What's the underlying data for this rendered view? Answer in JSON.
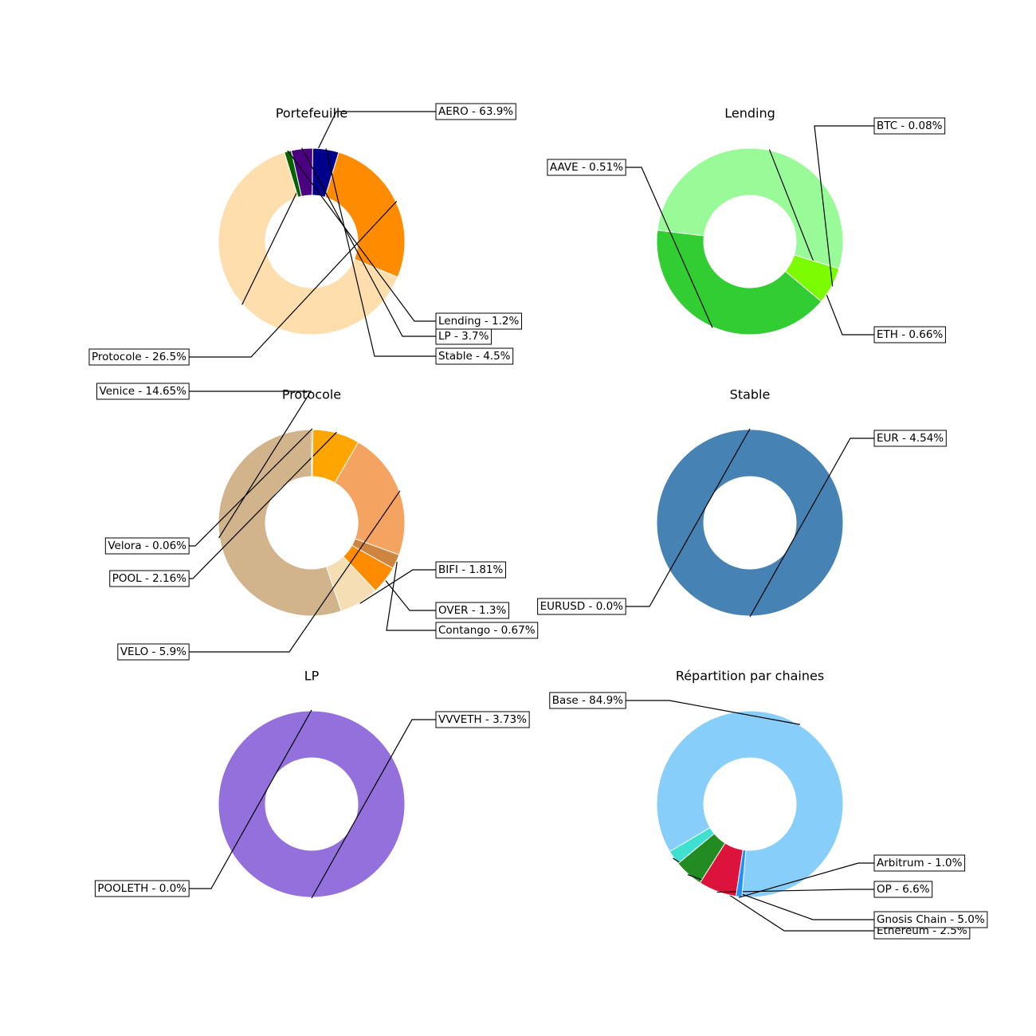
{
  "chart_data": [
    {
      "type": "pie",
      "title": "Portefeuille",
      "slices": [
        {
          "label": "AERO - 63.9%",
          "value": 63.9,
          "color": "#ffdead"
        },
        {
          "label": "Protocole - 26.5%",
          "value": 26.5,
          "color": "#ff8c00"
        },
        {
          "label": "Stable - 4.5%",
          "value": 4.5,
          "color": "#00008b"
        },
        {
          "label": "LP - 3.7%",
          "value": 3.7,
          "color": "#4b0082"
        },
        {
          "label": "Lending - 1.2%",
          "value": 1.2,
          "color": "#006400"
        }
      ]
    },
    {
      "type": "pie",
      "title": "Lending",
      "slices": [
        {
          "label": "ETH - 0.66%",
          "value": 0.66,
          "color": "#98fb98"
        },
        {
          "label": "AAVE - 0.51%",
          "value": 0.51,
          "color": "#32cd32"
        },
        {
          "label": "BTC - 0.08%",
          "value": 0.08,
          "color": "#7cfc00"
        }
      ]
    },
    {
      "type": "pie",
      "title": "Protocole",
      "slices": [
        {
          "label": "Venice - 14.65%",
          "value": 14.65,
          "color": "#d2b48c"
        },
        {
          "label": "BIFI - 1.81%",
          "value": 1.81,
          "color": "#f5deb3"
        },
        {
          "label": "OVER - 1.3%",
          "value": 1.3,
          "color": "#ff8c00"
        },
        {
          "label": "Contango - 0.67%",
          "value": 0.67,
          "color": "#cd853f"
        },
        {
          "label": "VELO - 5.9%",
          "value": 5.9,
          "color": "#f4a460"
        },
        {
          "label": "POOL - 2.16%",
          "value": 2.16,
          "color": "#ffa500"
        },
        {
          "label": "Velora - 0.06%",
          "value": 0.06,
          "color": "#b8860b"
        }
      ]
    },
    {
      "type": "pie",
      "title": "Stable",
      "slices": [
        {
          "label": "EUR - 4.54%",
          "value": 4.54,
          "color": "#4682b4"
        },
        {
          "label": "EURUSD - 0.0%",
          "value": 0.0,
          "color": "#5f9ea0"
        }
      ]
    },
    {
      "type": "pie",
      "title": "LP",
      "slices": [
        {
          "label": "VVVETH - 3.73%",
          "value": 3.73,
          "color": "#9370db"
        },
        {
          "label": "POOLETH - 0.0%",
          "value": 0.0,
          "color": "#8a2be2"
        }
      ]
    },
    {
      "type": "pie",
      "title": "Répartition par chaines",
      "slices": [
        {
          "label": "Base - 84.9%",
          "value": 84.9,
          "color": "#87cefa"
        },
        {
          "label": "Ethereum - 2.5%",
          "value": 2.5,
          "color": "#40e0d0"
        },
        {
          "label": "Gnosis Chain - 5.0%",
          "value": 5.0,
          "color": "#228b22"
        },
        {
          "label": "OP - 6.6%",
          "value": 6.6,
          "color": "#dc143c"
        },
        {
          "label": "Arbitrum - 1.0%",
          "value": 1.0,
          "color": "#1e90ff"
        }
      ]
    }
  ]
}
